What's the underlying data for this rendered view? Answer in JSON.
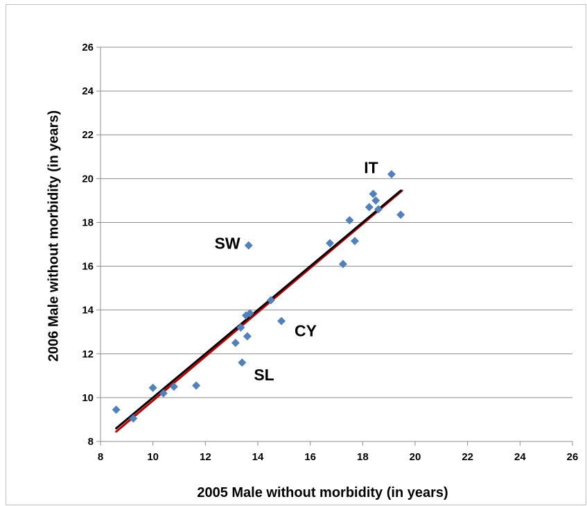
{
  "chart_data": {
    "type": "scatter",
    "xlabel": "2005 Male without morbidity (in years)",
    "ylabel": "2006 Male without morbidity (in years)",
    "xlim": [
      8,
      26
    ],
    "ylim": [
      8,
      26
    ],
    "xticks": [
      "8",
      "10",
      "12",
      "14",
      "16",
      "18",
      "20",
      "22",
      "24",
      "26"
    ],
    "yticks": [
      "8",
      "10",
      "12",
      "14",
      "16",
      "18",
      "20",
      "22",
      "24",
      "26"
    ],
    "grid": "horizontal",
    "legend": "none",
    "marker_color": "#4f81bd",
    "points": [
      {
        "x": 8.6,
        "y": 9.45
      },
      {
        "x": 9.25,
        "y": 9.05
      },
      {
        "x": 10.0,
        "y": 10.45
      },
      {
        "x": 10.4,
        "y": 10.2
      },
      {
        "x": 10.8,
        "y": 10.5
      },
      {
        "x": 11.65,
        "y": 10.55
      },
      {
        "x": 13.15,
        "y": 12.5
      },
      {
        "x": 13.35,
        "y": 13.2
      },
      {
        "x": 13.4,
        "y": 11.6
      },
      {
        "x": 13.55,
        "y": 13.75
      },
      {
        "x": 13.6,
        "y": 12.8
      },
      {
        "x": 13.65,
        "y": 16.95
      },
      {
        "x": 13.7,
        "y": 13.85
      },
      {
        "x": 14.5,
        "y": 14.45
      },
      {
        "x": 14.9,
        "y": 13.5
      },
      {
        "x": 16.75,
        "y": 17.05
      },
      {
        "x": 17.25,
        "y": 16.1
      },
      {
        "x": 17.5,
        "y": 18.1
      },
      {
        "x": 17.7,
        "y": 17.15
      },
      {
        "x": 18.25,
        "y": 18.7
      },
      {
        "x": 18.4,
        "y": 19.3
      },
      {
        "x": 18.5,
        "y": 19.0
      },
      {
        "x": 18.6,
        "y": 18.6
      },
      {
        "x": 19.1,
        "y": 20.2
      },
      {
        "x": 19.45,
        "y": 18.35
      }
    ],
    "lines": [
      {
        "color": "#c00000",
        "from": [
          8.6,
          8.45
        ],
        "to": [
          19.5,
          19.45
        ]
      },
      {
        "color": "#000000",
        "from": [
          8.6,
          8.6
        ],
        "to": [
          19.45,
          19.45
        ]
      }
    ],
    "annotations": [
      {
        "text": "IT",
        "x": 18.05,
        "y": 20.5
      },
      {
        "text": "SW",
        "x": 12.35,
        "y": 17.05
      },
      {
        "text": "CY",
        "x": 15.4,
        "y": 13.05
      },
      {
        "text": "SL",
        "x": 13.85,
        "y": 11.05
      }
    ]
  }
}
